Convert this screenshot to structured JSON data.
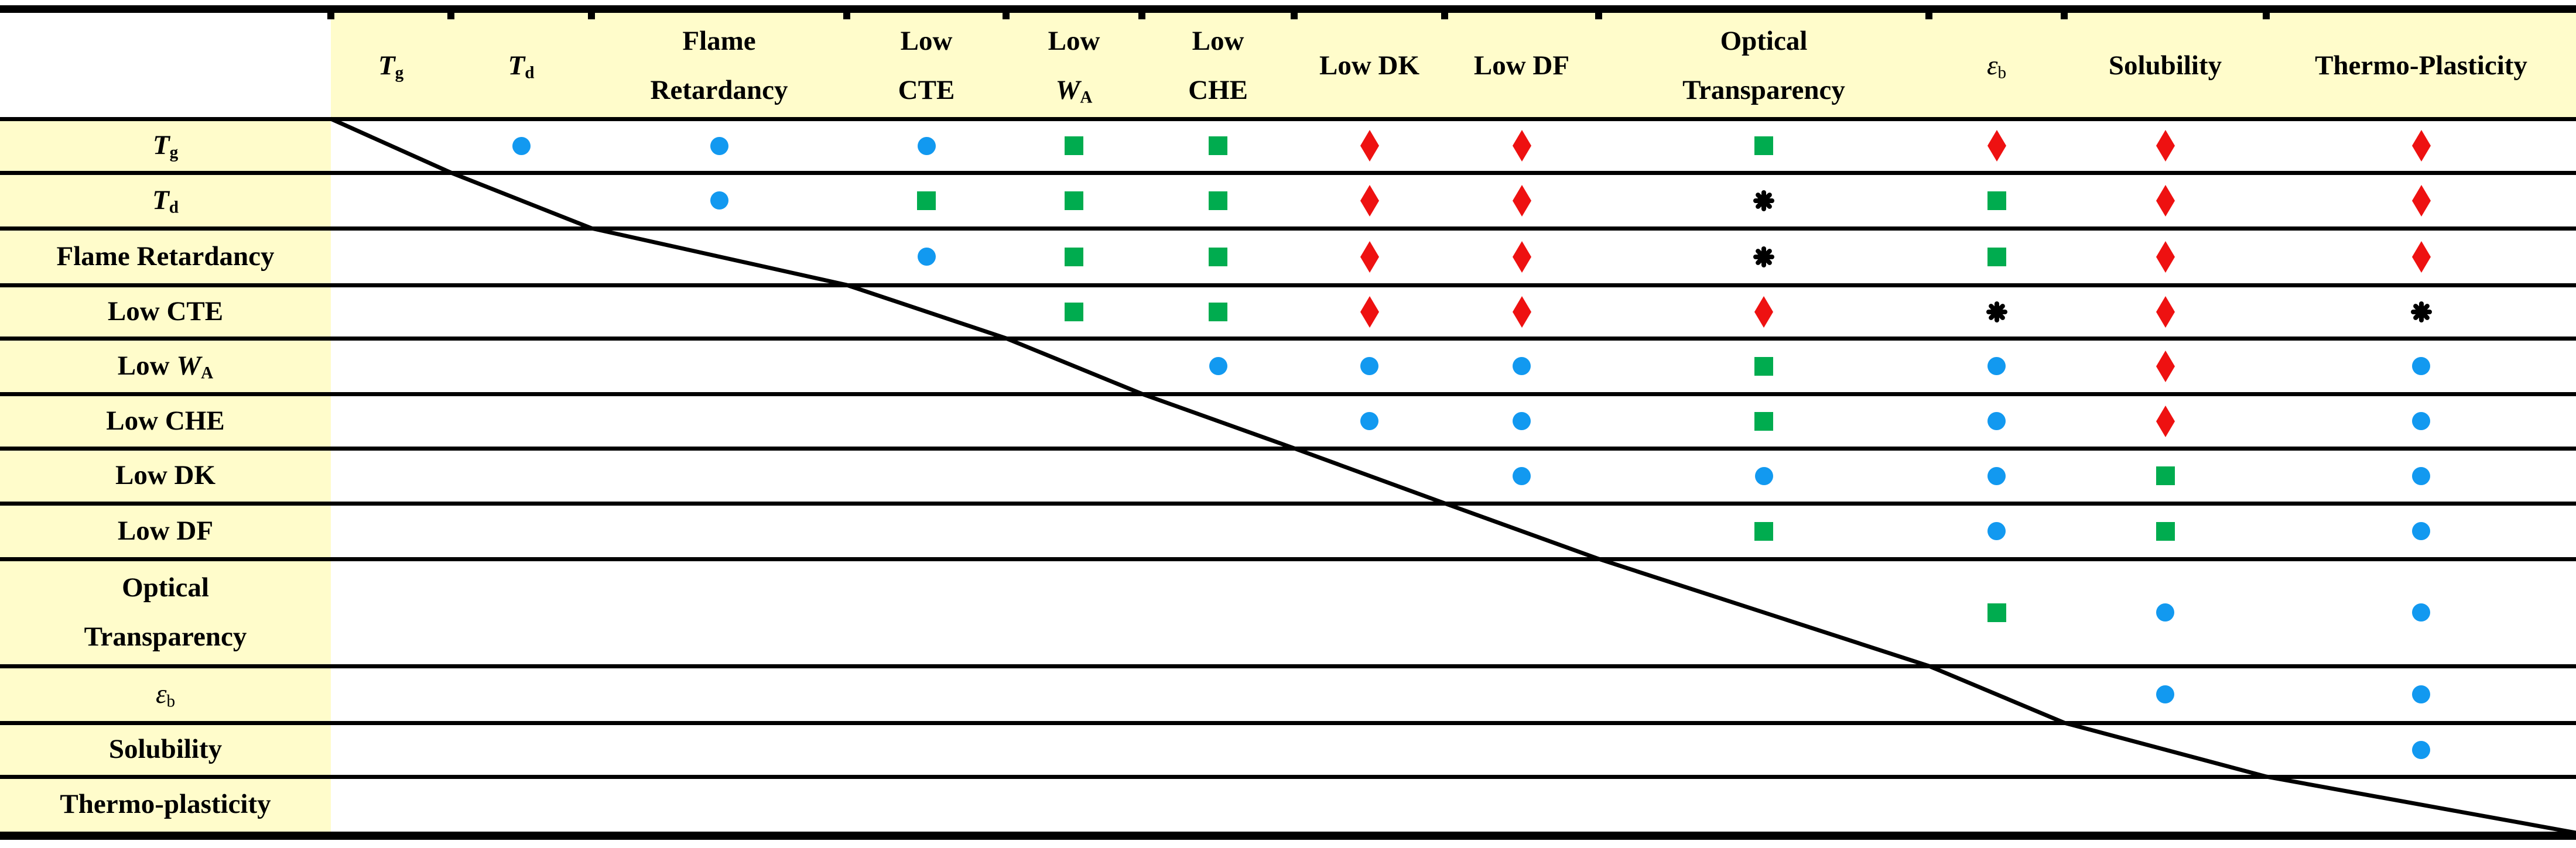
{
  "figure": {
    "kind": "property-tradeoff-matrix-table",
    "colors": {
      "header_bg": "#FFFCCB",
      "border": "#000000",
      "background": "#FFFFFF",
      "blue": "#1299F0",
      "green": "#00AC4F",
      "red": "#EE1111",
      "black": "#000000"
    }
  },
  "symbols": {
    "b": {
      "icon": "blue-circle-icon",
      "color": "#1299F0"
    },
    "g": {
      "icon": "green-square-icon",
      "color": "#00AC4F"
    },
    "r": {
      "icon": "red-diamond-icon",
      "color": "#EE1111"
    },
    "a": {
      "icon": "black-asterisk-icon",
      "color": "#000000"
    }
  },
  "columns": [
    {
      "lines": [
        [
          {
            "t": "T",
            "it": 1
          },
          {
            "t": "g",
            "sub": 1
          }
        ]
      ]
    },
    {
      "lines": [
        [
          {
            "t": "T",
            "it": 1
          },
          {
            "t": "d",
            "sub": 1
          }
        ]
      ]
    },
    {
      "lines": [
        [
          {
            "t": "Flame"
          }
        ],
        [
          {
            "t": "Retardancy"
          }
        ]
      ]
    },
    {
      "lines": [
        [
          {
            "t": "Low"
          }
        ],
        [
          {
            "t": "CTE"
          }
        ]
      ]
    },
    {
      "lines": [
        [
          {
            "t": "Low"
          }
        ],
        [
          {
            "t": "W",
            "it": 1
          },
          {
            "t": "A",
            "sub": 1
          }
        ]
      ]
    },
    {
      "lines": [
        [
          {
            "t": "Low"
          }
        ],
        [
          {
            "t": "CHE"
          }
        ]
      ]
    },
    {
      "lines": [
        [
          {
            "t": "Low DK"
          }
        ]
      ]
    },
    {
      "lines": [
        [
          {
            "t": "Low DF"
          }
        ]
      ]
    },
    {
      "lines": [
        [
          {
            "t": "Optical"
          }
        ],
        [
          {
            "t": "Transparency"
          }
        ]
      ]
    },
    {
      "lines": [
        [
          {
            "t": "ε",
            "it": 1,
            "nb": 1
          },
          {
            "t": "b",
            "sub": 1,
            "nb": 1
          }
        ]
      ]
    },
    {
      "lines": [
        [
          {
            "t": "Solubility"
          }
        ]
      ]
    },
    {
      "lines": [
        [
          {
            "t": "Thermo-Plasticity"
          }
        ]
      ]
    }
  ],
  "rows": [
    {
      "lines": [
        [
          {
            "t": "T",
            "it": 1
          },
          {
            "t": "g",
            "sub": 1
          }
        ]
      ]
    },
    {
      "lines": [
        [
          {
            "t": "T",
            "it": 1
          },
          {
            "t": "d",
            "sub": 1
          }
        ]
      ]
    },
    {
      "lines": [
        [
          {
            "t": "Flame Retardancy"
          }
        ]
      ]
    },
    {
      "lines": [
        [
          {
            "t": "Low CTE"
          }
        ]
      ]
    },
    {
      "lines": [
        [
          {
            "t": "Low "
          },
          {
            "t": "W",
            "it": 1
          },
          {
            "t": "A",
            "sub": 1
          }
        ]
      ]
    },
    {
      "lines": [
        [
          {
            "t": "Low CHE"
          }
        ]
      ]
    },
    {
      "lines": [
        [
          {
            "t": "Low DK"
          }
        ]
      ]
    },
    {
      "lines": [
        [
          {
            "t": "Low DF"
          }
        ]
      ]
    },
    {
      "lines": [
        [
          {
            "t": "Optical"
          }
        ],
        [
          {
            "t": "Transparency"
          }
        ]
      ]
    },
    {
      "lines": [
        [
          {
            "t": "ε",
            "it": 1,
            "nb": 1
          },
          {
            "t": "b",
            "sub": 1,
            "nb": 1
          }
        ]
      ]
    },
    {
      "lines": [
        [
          {
            "t": "Solubility"
          }
        ]
      ]
    },
    {
      "lines": [
        [
          {
            "t": "Thermo-plasticity"
          }
        ]
      ]
    }
  ],
  "matrix": [
    [
      "",
      "b",
      "b",
      "b",
      "g",
      "g",
      "r",
      "r",
      "g",
      "r",
      "r",
      "r"
    ],
    [
      "",
      "",
      "b",
      "g",
      "g",
      "g",
      "r",
      "r",
      "a",
      "g",
      "r",
      "r"
    ],
    [
      "",
      "",
      "",
      "b",
      "g",
      "g",
      "r",
      "r",
      "a",
      "g",
      "r",
      "r"
    ],
    [
      "",
      "",
      "",
      "",
      "g",
      "g",
      "r",
      "r",
      "r",
      "a",
      "r",
      "a"
    ],
    [
      "",
      "",
      "",
      "",
      "",
      "b",
      "b",
      "b",
      "g",
      "b",
      "r",
      "b"
    ],
    [
      "",
      "",
      "",
      "",
      "",
      "",
      "b",
      "b",
      "g",
      "b",
      "r",
      "b"
    ],
    [
      "",
      "",
      "",
      "",
      "",
      "",
      "",
      "b",
      "b",
      "b",
      "g",
      "b"
    ],
    [
      "",
      "",
      "",
      "",
      "",
      "",
      "",
      "",
      "g",
      "b",
      "g",
      "b"
    ],
    [
      "",
      "",
      "",
      "",
      "",
      "",
      "",
      "",
      "",
      "g",
      "b",
      "b"
    ],
    [
      "",
      "",
      "",
      "",
      "",
      "",
      "",
      "",
      "",
      "",
      "b",
      "b"
    ],
    [
      "",
      "",
      "",
      "",
      "",
      "",
      "",
      "",
      "",
      "",
      "",
      "b"
    ],
    [
      "",
      "",
      "",
      "",
      "",
      "",
      "",
      "",
      "",
      "",
      "",
      ""
    ]
  ]
}
